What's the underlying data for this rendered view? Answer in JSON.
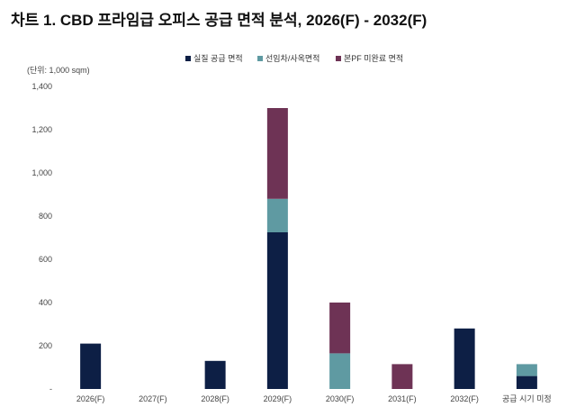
{
  "title": "차트 1. CBD 프라임급 오피스 공급 면적 분석, 2026(F) - 2032(F)",
  "chart_data": {
    "type": "bar",
    "stacked": true,
    "unit_label": "(단위: 1,000 sqm)",
    "categories": [
      "2026(F)",
      "2027(F)",
      "2028(F)",
      "2029(F)",
      "2030(F)",
      "2031(F)",
      "2032(F)",
      "공급 시기 미정"
    ],
    "series": [
      {
        "name": "실질 공급 면적",
        "color": "#0d1f45",
        "values": [
          210,
          0,
          130,
          725,
          0,
          0,
          280,
          60
        ]
      },
      {
        "name": "선임차/사옥면적",
        "color": "#5f9aa2",
        "values": [
          0,
          0,
          0,
          155,
          165,
          0,
          0,
          55
        ]
      },
      {
        "name": "본PF 미완료 면적",
        "color": "#6e3355",
        "values": [
          0,
          0,
          0,
          420,
          235,
          115,
          0,
          0
        ]
      }
    ],
    "ylim": [
      0,
      1400
    ],
    "yticks": [
      0,
      200,
      400,
      600,
      800,
      1000,
      1200,
      1400
    ],
    "ytick_labels": [
      "-",
      "200",
      "400",
      "600",
      "800",
      "1,000",
      "1,200",
      "1,400"
    ],
    "grid": false,
    "legend_position": "top-center"
  }
}
